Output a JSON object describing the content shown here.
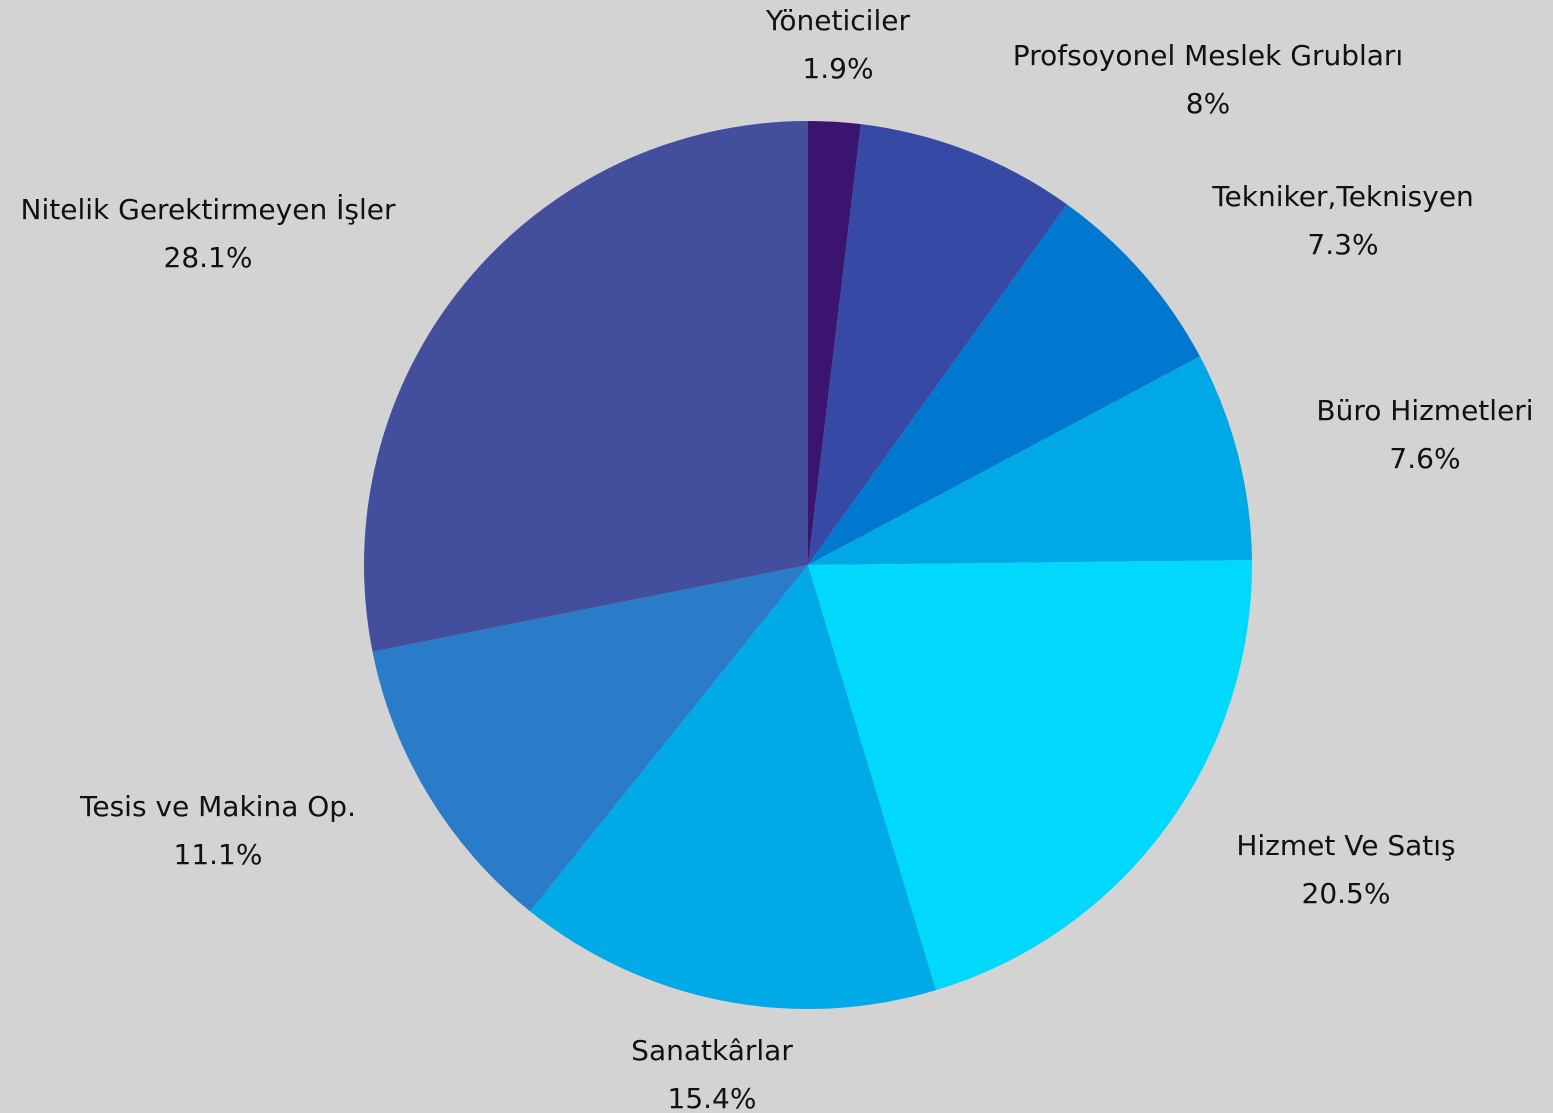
{
  "chart_data": {
    "type": "pie",
    "categories": [
      "Yöneticiler",
      "Profsoyonel Meslek Grubları",
      "Tekniker,Teknisyen",
      "Büro Hizmetleri",
      "Hizmet Ve Satış",
      "Sanatkârlar",
      "Tesis ve Makina Op.",
      "Nitelik Gerektirmeyen İşler"
    ],
    "values": [
      1.9,
      8,
      7.3,
      7.6,
      20.5,
      15.4,
      11.1,
      28.1
    ],
    "value_labels": [
      "1.9%",
      "8%",
      "7.3%",
      "7.6%",
      "20.5%",
      "15.4%",
      "11.1%",
      "28.1%"
    ],
    "colors": [
      "#3b1470",
      "#364aa5",
      "#0078d0",
      "#00a9e6",
      "#00d8fc",
      "#00aae6",
      "#2a7bc8",
      "#434f9c"
    ]
  }
}
